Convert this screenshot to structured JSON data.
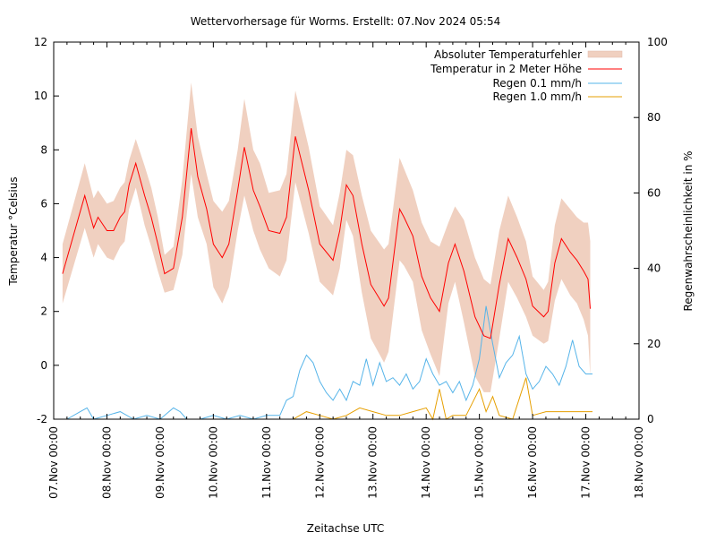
{
  "chart_data": {
    "type": "line",
    "title": "Wettervorhersage für Worms. Erstellt: 07.Nov 2024 05:54",
    "xlabel": "Zeitachse UTC",
    "ylabel": "Temperatur °Celsius",
    "y2label": "Regenwahrscheinlichkeit in %",
    "xlim": [
      "2024-11-07T00:00",
      "2024-11-18T00:00"
    ],
    "ylim": [
      -2,
      12
    ],
    "y2lim": [
      0,
      100
    ],
    "grid": false,
    "legend_position": "top-right",
    "x_tick_labels": [
      "07.Nov 00:00",
      "08.Nov 00:00",
      "09.Nov 00:00",
      "10.Nov 00:00",
      "11.Nov 00:00",
      "12.Nov 00:00",
      "13.Nov 00:00",
      "14.Nov 00:00",
      "15.Nov 00:00",
      "16.Nov 00:00",
      "17.Nov 00:00",
      "18.Nov 00:00"
    ],
    "y_tick_labels": [
      "-2",
      "0",
      "2",
      "4",
      "6",
      "8",
      "10",
      "12"
    ],
    "y2_tick_labels": [
      "0",
      "20",
      "40",
      "60",
      "80",
      "100"
    ],
    "colors": {
      "band": "#f0d0c0",
      "temperature": "#ff0000",
      "rain01": "#56b4e9",
      "rain10": "#e69f00"
    },
    "legend": [
      "Absoluter Temperaturfehler",
      "Temperatur in 2 Meter Höhe",
      "Regen 0.1 mm/h",
      "Regen 1.0 mm/h"
    ],
    "temperature": [
      [
        "2024-11-07T04:00",
        3.4,
        1.1
      ],
      [
        "2024-11-07T14:00",
        6.3,
        1.2
      ],
      [
        "2024-11-07T18:00",
        5.1,
        1.1
      ],
      [
        "2024-11-07T20:00",
        5.5,
        1.0
      ],
      [
        "2024-11-08T00:00",
        5.0,
        1.0
      ],
      [
        "2024-11-08T03:00",
        5.0,
        1.1
      ],
      [
        "2024-11-08T06:00",
        5.5,
        1.1
      ],
      [
        "2024-11-08T08:00",
        5.7,
        1.1
      ],
      [
        "2024-11-08T10:00",
        6.7,
        0.9
      ],
      [
        "2024-11-08T13:00",
        7.5,
        0.9
      ],
      [
        "2024-11-08T17:00",
        6.3,
        1.1
      ],
      [
        "2024-11-08T20:00",
        5.5,
        1.1
      ],
      [
        "2024-11-08T23:00",
        4.5,
        1.0
      ],
      [
        "2024-11-09T02:00",
        3.4,
        0.7
      ],
      [
        "2024-11-09T06:00",
        3.6,
        0.8
      ],
      [
        "2024-11-09T10:00",
        5.5,
        1.4
      ],
      [
        "2024-11-09T14:00",
        8.8,
        1.7
      ],
      [
        "2024-11-09T17:00",
        7.0,
        1.5
      ],
      [
        "2024-11-09T21:00",
        5.8,
        1.3
      ],
      [
        "2024-11-10T00:00",
        4.5,
        1.6
      ],
      [
        "2024-11-10T04:00",
        4.0,
        1.7
      ],
      [
        "2024-11-10T07:00",
        4.5,
        1.6
      ],
      [
        "2024-11-10T11:00",
        6.5,
        1.5
      ],
      [
        "2024-11-10T14:00",
        8.1,
        1.8
      ],
      [
        "2024-11-10T18:00",
        6.5,
        1.5
      ],
      [
        "2024-11-10T21:00",
        5.9,
        1.6
      ],
      [
        "2024-11-11T01:00",
        5.0,
        1.4
      ],
      [
        "2024-11-11T06:00",
        4.9,
        1.6
      ],
      [
        "2024-11-11T09:00",
        5.5,
        1.6
      ],
      [
        "2024-11-11T13:00",
        8.5,
        1.7
      ],
      [
        "2024-11-11T19:00",
        6.5,
        1.6
      ],
      [
        "2024-11-12T00:00",
        4.5,
        1.4
      ],
      [
        "2024-11-12T06:00",
        3.9,
        1.3
      ],
      [
        "2024-11-12T09:00",
        5.0,
        1.4
      ],
      [
        "2024-11-12T12:00",
        6.7,
        1.3
      ],
      [
        "2024-11-12T15:00",
        6.3,
        1.5
      ],
      [
        "2024-11-12T19:00",
        4.5,
        1.8
      ],
      [
        "2024-11-12T23:00",
        3.0,
        2.0
      ],
      [
        "2024-11-13T05:00",
        2.2,
        2.1
      ],
      [
        "2024-11-13T07:00",
        2.5,
        2.0
      ],
      [
        "2024-11-13T12:00",
        5.8,
        1.9
      ],
      [
        "2024-11-13T14:00",
        5.5,
        1.8
      ],
      [
        "2024-11-13T18:00",
        4.8,
        1.7
      ],
      [
        "2024-11-13T22:00",
        3.3,
        2.0
      ],
      [
        "2024-11-14T02:00",
        2.5,
        2.1
      ],
      [
        "2024-11-14T06:00",
        2.0,
        2.4
      ],
      [
        "2024-11-14T10:00",
        3.8,
        1.5
      ],
      [
        "2024-11-14T13:00",
        4.5,
        1.4
      ],
      [
        "2024-11-14T17:00",
        3.5,
        1.9
      ],
      [
        "2024-11-14T22:00",
        1.8,
        2.2
      ],
      [
        "2024-11-15T02:00",
        1.1,
        2.1
      ],
      [
        "2024-11-15T05:00",
        1.0,
        2.0
      ],
      [
        "2024-11-15T09:00",
        3.0,
        2.0
      ],
      [
        "2024-11-15T13:00",
        4.7,
        1.6
      ],
      [
        "2024-11-15T17:00",
        4.0,
        1.5
      ],
      [
        "2024-11-15T21:00",
        3.2,
        1.4
      ],
      [
        "2024-11-16T00:00",
        2.2,
        1.1
      ],
      [
        "2024-11-16T05:00",
        1.8,
        1.0
      ],
      [
        "2024-11-16T07:00",
        2.0,
        1.1
      ],
      [
        "2024-11-16T10:00",
        3.8,
        1.4
      ],
      [
        "2024-11-16T13:00",
        4.7,
        1.5
      ],
      [
        "2024-11-16T17:00",
        4.2,
        1.6
      ],
      [
        "2024-11-16T20:00",
        3.9,
        1.6
      ],
      [
        "2024-11-16T23:00",
        3.5,
        1.8
      ],
      [
        "2024-11-17T01:00",
        3.2,
        2.1
      ],
      [
        "2024-11-17T02:00",
        2.1,
        2.5
      ]
    ],
    "rain01": [
      [
        "2024-11-07T06:00",
        0
      ],
      [
        "2024-11-07T12:00",
        2
      ],
      [
        "2024-11-07T15:00",
        3
      ],
      [
        "2024-11-07T18:00",
        0
      ],
      [
        "2024-11-08T00:00",
        1
      ],
      [
        "2024-11-08T06:00",
        2
      ],
      [
        "2024-11-08T12:00",
        0
      ],
      [
        "2024-11-08T18:00",
        1
      ],
      [
        "2024-11-09T00:00",
        0
      ],
      [
        "2024-11-09T06:00",
        3
      ],
      [
        "2024-11-09T09:00",
        2
      ],
      [
        "2024-11-09T12:00",
        0
      ],
      [
        "2024-11-09T18:00",
        0
      ],
      [
        "2024-11-10T00:00",
        1
      ],
      [
        "2024-11-10T06:00",
        0
      ],
      [
        "2024-11-10T12:00",
        1
      ],
      [
        "2024-11-10T18:00",
        0
      ],
      [
        "2024-11-11T00:00",
        1
      ],
      [
        "2024-11-11T06:00",
        1
      ],
      [
        "2024-11-11T09:00",
        5
      ],
      [
        "2024-11-11T12:00",
        6
      ],
      [
        "2024-11-11T15:00",
        13
      ],
      [
        "2024-11-11T18:00",
        17
      ],
      [
        "2024-11-11T21:00",
        15
      ],
      [
        "2024-11-12T00:00",
        10
      ],
      [
        "2024-11-12T03:00",
        7
      ],
      [
        "2024-11-12T06:00",
        5
      ],
      [
        "2024-11-12T09:00",
        8
      ],
      [
        "2024-11-12T12:00",
        5
      ],
      [
        "2024-11-12T15:00",
        10
      ],
      [
        "2024-11-12T18:00",
        9
      ],
      [
        "2024-11-12T21:00",
        16
      ],
      [
        "2024-11-13T00:00",
        9
      ],
      [
        "2024-11-13T03:00",
        15
      ],
      [
        "2024-11-13T06:00",
        10
      ],
      [
        "2024-11-13T09:00",
        11
      ],
      [
        "2024-11-13T12:00",
        9
      ],
      [
        "2024-11-13T15:00",
        12
      ],
      [
        "2024-11-13T18:00",
        8
      ],
      [
        "2024-11-13T21:00",
        10
      ],
      [
        "2024-11-14T00:00",
        16
      ],
      [
        "2024-11-14T03:00",
        12
      ],
      [
        "2024-11-14T06:00",
        9
      ],
      [
        "2024-11-14T09:00",
        10
      ],
      [
        "2024-11-14T12:00",
        7
      ],
      [
        "2024-11-14T15:00",
        10
      ],
      [
        "2024-11-14T18:00",
        5
      ],
      [
        "2024-11-14T21:00",
        9
      ],
      [
        "2024-11-15T00:00",
        16
      ],
      [
        "2024-11-15T03:00",
        30
      ],
      [
        "2024-11-15T06:00",
        20
      ],
      [
        "2024-11-15T09:00",
        11
      ],
      [
        "2024-11-15T12:00",
        15
      ],
      [
        "2024-11-15T15:00",
        17
      ],
      [
        "2024-11-15T18:00",
        22
      ],
      [
        "2024-11-15T21:00",
        12
      ],
      [
        "2024-11-16T00:00",
        8
      ],
      [
        "2024-11-16T03:00",
        10
      ],
      [
        "2024-11-16T06:00",
        14
      ],
      [
        "2024-11-16T09:00",
        12
      ],
      [
        "2024-11-16T12:00",
        9
      ],
      [
        "2024-11-16T15:00",
        14
      ],
      [
        "2024-11-16T18:00",
        21
      ],
      [
        "2024-11-16T21:00",
        14
      ],
      [
        "2024-11-17T00:00",
        12
      ],
      [
        "2024-11-17T03:00",
        12
      ]
    ],
    "rain10": [
      [
        "2024-11-07T06:00",
        0
      ],
      [
        "2024-11-11T12:00",
        0
      ],
      [
        "2024-11-11T15:00",
        1
      ],
      [
        "2024-11-11T18:00",
        2
      ],
      [
        "2024-11-12T00:00",
        1
      ],
      [
        "2024-11-12T06:00",
        0
      ],
      [
        "2024-11-12T12:00",
        1
      ],
      [
        "2024-11-12T18:00",
        3
      ],
      [
        "2024-11-13T00:00",
        2
      ],
      [
        "2024-11-13T06:00",
        1
      ],
      [
        "2024-11-13T12:00",
        1
      ],
      [
        "2024-11-13T18:00",
        2
      ],
      [
        "2024-11-14T00:00",
        3
      ],
      [
        "2024-11-14T03:00",
        0
      ],
      [
        "2024-11-14T06:00",
        8
      ],
      [
        "2024-11-14T09:00",
        0
      ],
      [
        "2024-11-14T12:00",
        1
      ],
      [
        "2024-11-14T18:00",
        1
      ],
      [
        "2024-11-15T00:00",
        8
      ],
      [
        "2024-11-15T03:00",
        2
      ],
      [
        "2024-11-15T06:00",
        6
      ],
      [
        "2024-11-15T09:00",
        1
      ],
      [
        "2024-11-15T15:00",
        0
      ],
      [
        "2024-11-15T21:00",
        11
      ],
      [
        "2024-11-16T00:00",
        1
      ],
      [
        "2024-11-16T06:00",
        2
      ],
      [
        "2024-11-16T12:00",
        2
      ],
      [
        "2024-11-16T18:00",
        2
      ],
      [
        "2024-11-17T03:00",
        2
      ]
    ]
  }
}
